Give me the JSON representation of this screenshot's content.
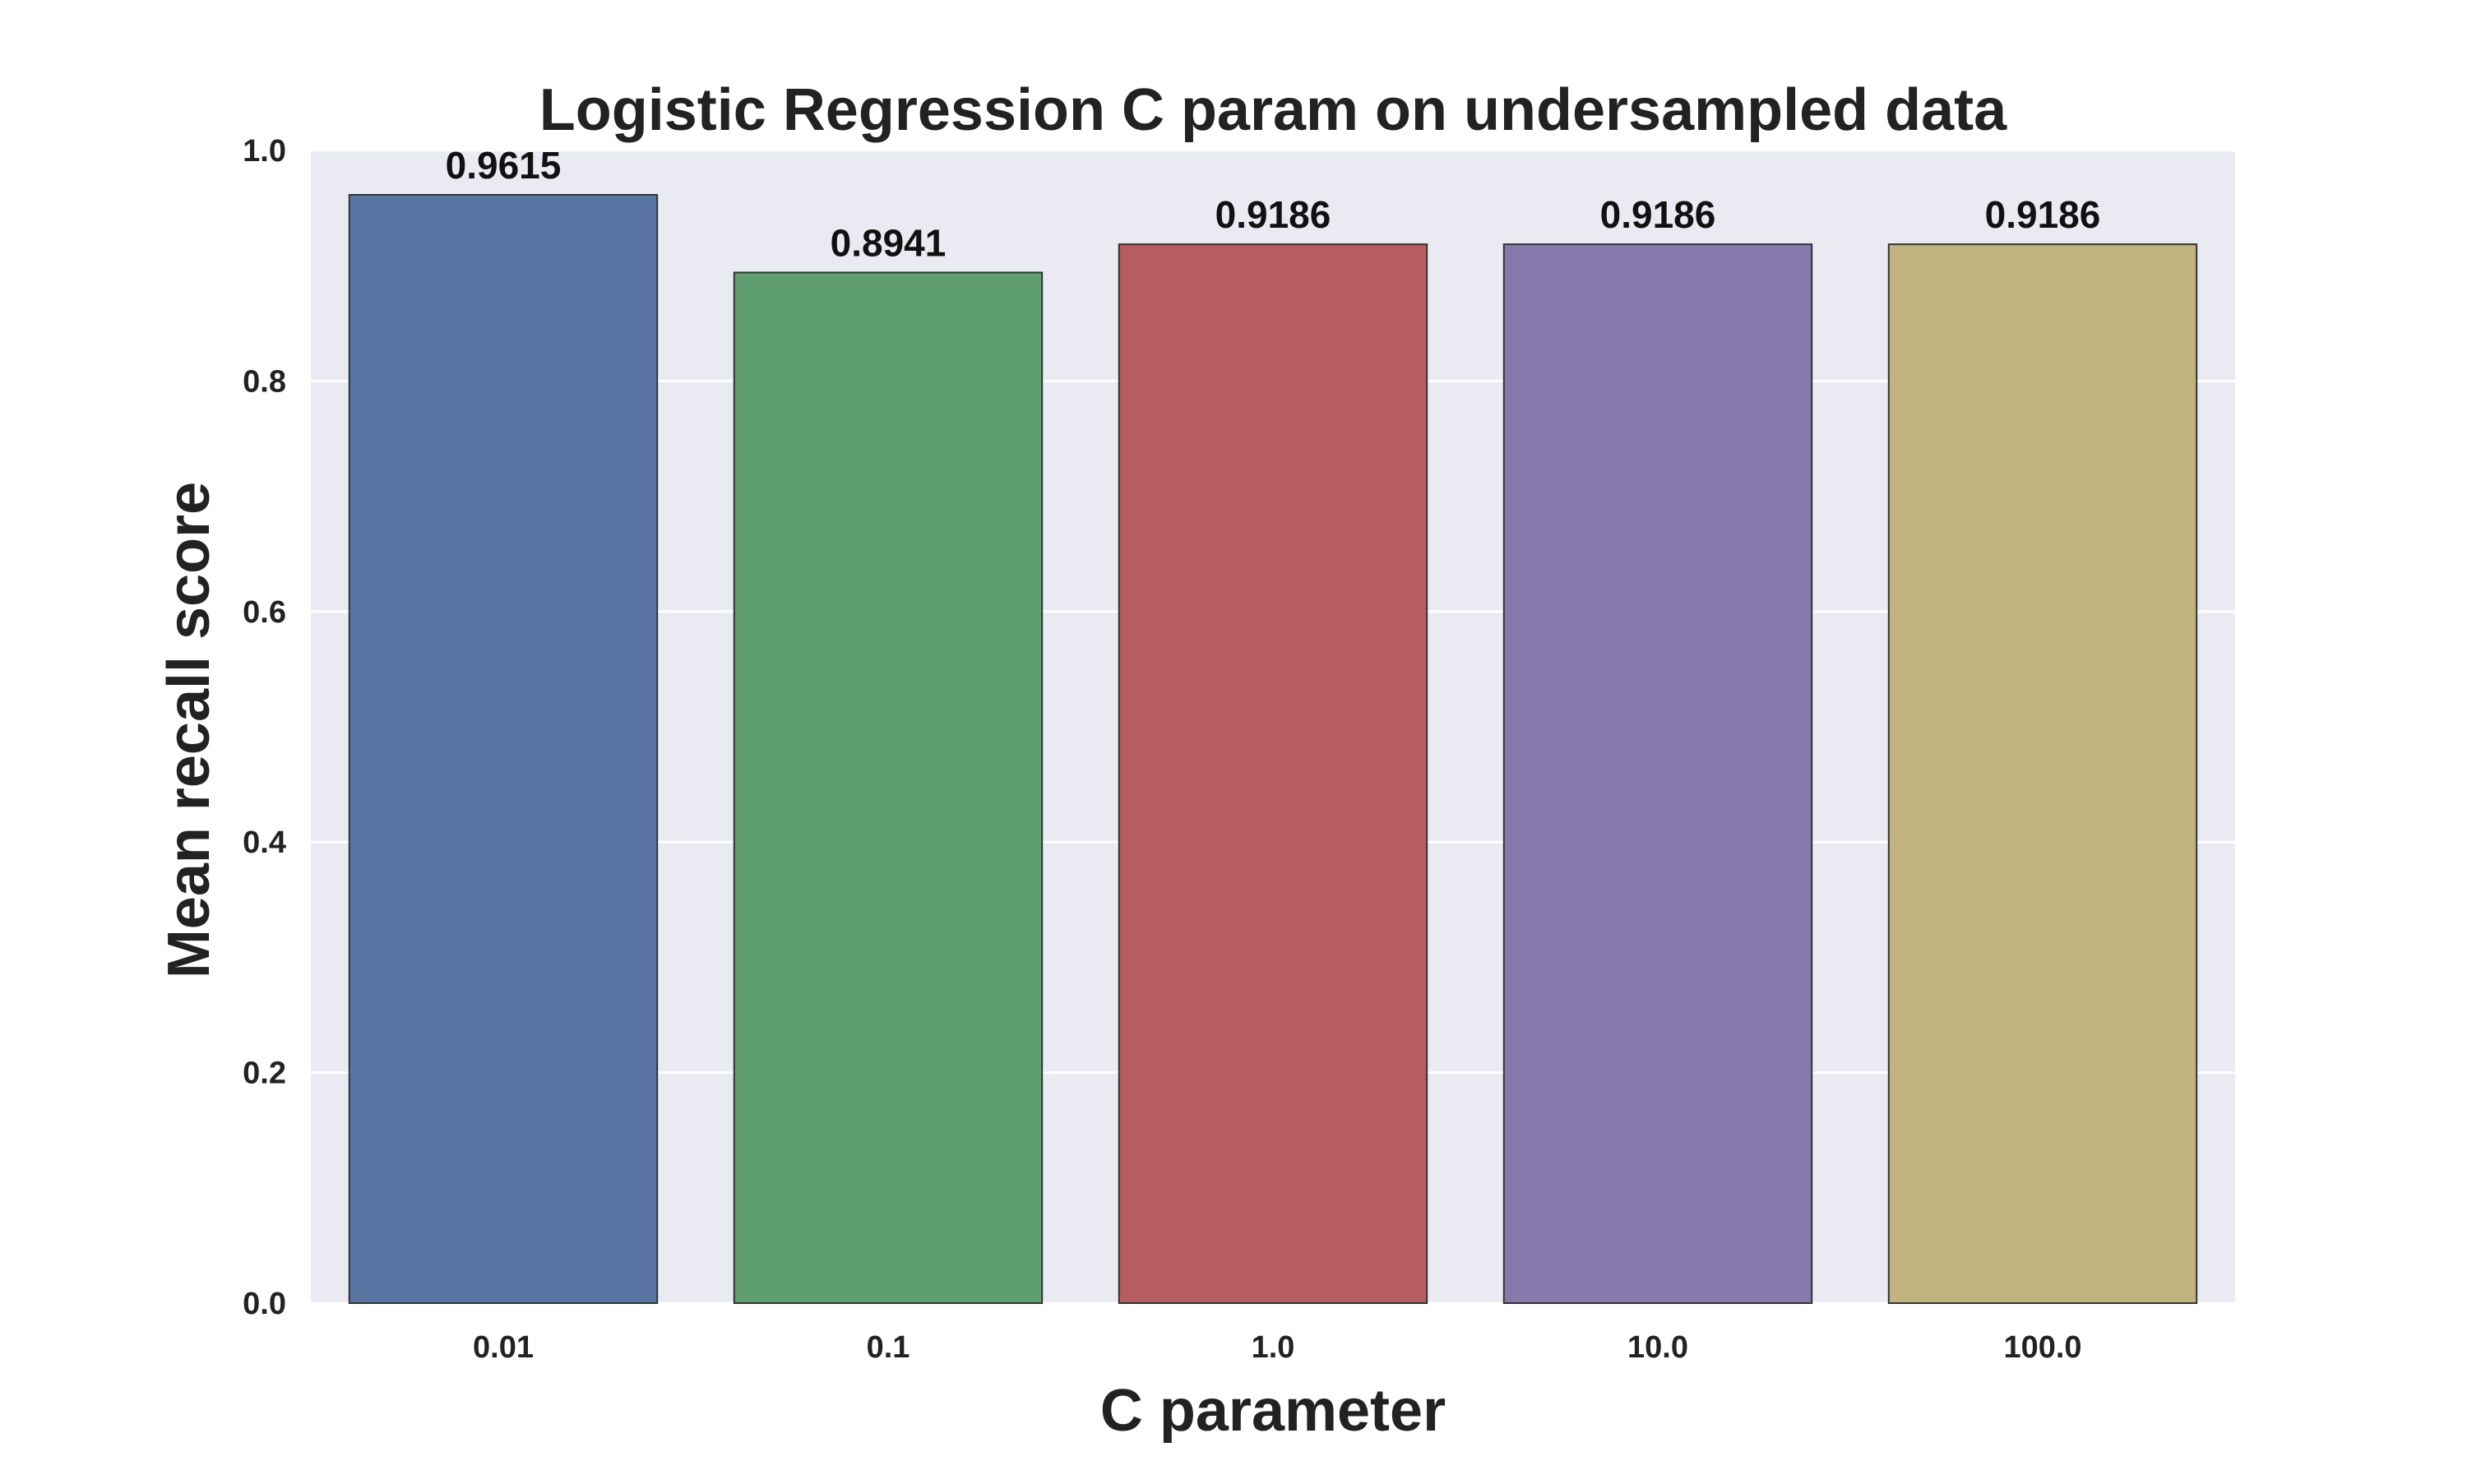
{
  "chart_data": {
    "type": "bar",
    "title": "Logistic Regression C param on undersampled data",
    "xlabel": "C parameter",
    "ylabel": "Mean recall score",
    "categories": [
      "0.01",
      "0.1",
      "1.0",
      "10.0",
      "100.0"
    ],
    "values": [
      0.9615,
      0.8941,
      0.9186,
      0.9186,
      0.9186
    ],
    "data_labels": [
      "0.9615",
      "0.8941",
      "0.9186",
      "0.9186",
      "0.9186"
    ],
    "yticks": [
      "0.0",
      "0.2",
      "0.4",
      "0.6",
      "0.8",
      "1.0"
    ],
    "ytick_values": [
      0,
      0.2,
      0.4,
      0.6,
      0.8,
      1.0
    ],
    "ylim": [
      0,
      1.0
    ],
    "grid": true,
    "legend": "none",
    "colors": [
      "#5975a4",
      "#5f9e6e",
      "#b55d60",
      "#857aab",
      "#c1b37f"
    ],
    "plot_background": "#eaeaf2",
    "grid_color": "#ffffff",
    "bar_edge_color": "#333333"
  }
}
